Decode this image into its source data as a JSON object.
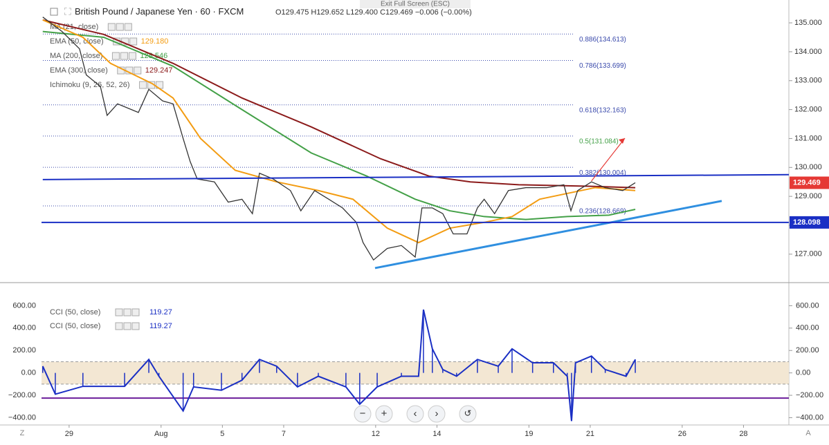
{
  "toolbar": {
    "exit_fullscreen": "Exit Full Screen (ESC)"
  },
  "header": {
    "symbol": "British Pound / Japanese Yen",
    "interval": "60",
    "source": "FXCM",
    "ohlc": "O129.475  H129.652  L129.400  C129.469  −0.006 (−0.00%)"
  },
  "indicators": [
    {
      "name": "MA (21, close)",
      "color": "#2196f3"
    },
    {
      "name": "EMA (50, close)",
      "value": "129.180",
      "color": "#f39c12"
    },
    {
      "name": "MA (200, close)",
      "value": "128.546",
      "color": "#43a047"
    },
    {
      "name": "EMA (300, close)",
      "value": "129.247",
      "color": "#8b1a1a"
    },
    {
      "name": "Ichimoku (9, 26, 52, 26)",
      "color": "#2196f3"
    }
  ],
  "xaxis": {
    "xlim": [
      -0.9,
      23.48
    ],
    "xticks": [
      {
        "value": 0,
        "label": "29"
      },
      {
        "value": 3,
        "label": "Aug"
      },
      {
        "value": 5,
        "label": "5"
      },
      {
        "value": 7,
        "label": "7"
      },
      {
        "value": 10,
        "label": "12"
      },
      {
        "value": 12,
        "label": "14"
      },
      {
        "value": 15,
        "label": "19"
      },
      {
        "value": 17,
        "label": "21"
      },
      {
        "value": 20,
        "label": "26"
      },
      {
        "value": 22,
        "label": "28"
      }
    ]
  },
  "price_panel": {
    "ylim": [
      126.04,
      135.79
    ],
    "yticks": [
      {
        "value": 127,
        "label": "127.000"
      },
      {
        "value": 128,
        "label": "128.000"
      },
      {
        "value": 129,
        "label": "129.000"
      },
      {
        "value": 130,
        "label": "130.000"
      },
      {
        "value": 131,
        "label": "131.000"
      },
      {
        "value": 132,
        "label": "132.000"
      },
      {
        "value": 133,
        "label": "133.000"
      },
      {
        "value": 134,
        "label": "134.000"
      },
      {
        "value": 135,
        "label": "135.000"
      }
    ],
    "price": {
      "color": "#333333",
      "x": [
        -0.86,
        -0.23,
        0.34,
        0.56,
        1.02,
        1.24,
        1.58,
        2.26,
        2.6,
        3.05,
        3.39,
        3.72,
        3.95,
        4.18,
        4.74,
        5.19,
        5.64,
        5.98,
        6.21,
        6.66,
        7.22,
        7.56,
        8.01,
        8.47,
        8.92,
        9.37,
        9.59,
        9.93,
        10.38,
        10.84,
        11.29,
        11.51,
        11.85,
        12.19,
        12.53,
        12.98,
        13.32,
        13.54,
        13.88,
        14.33,
        14.9,
        15.58,
        16.14,
        16.37,
        16.59,
        17.04,
        17.49,
        18.06,
        18.47
      ],
      "y": [
        135.2,
        134.7,
        134.1,
        133.2,
        132.8,
        131.8,
        132.2,
        131.9,
        132.7,
        132.3,
        132.2,
        131.0,
        130.2,
        129.6,
        129.5,
        128.8,
        128.9,
        128.4,
        129.8,
        129.6,
        129.2,
        128.5,
        129.2,
        128.9,
        128.6,
        128.1,
        127.4,
        126.8,
        127.2,
        127.3,
        126.9,
        128.6,
        128.6,
        128.4,
        127.7,
        127.7,
        128.6,
        128.9,
        128.4,
        129.2,
        129.3,
        129.3,
        129.4,
        128.5,
        129.2,
        129.5,
        129.3,
        129.2,
        129.47
      ]
    },
    "ema50": {
      "color": "#f39c12",
      "x": [
        -0.86,
        0.45,
        1.35,
        2.71,
        3.39,
        4.29,
        5.42,
        6.77,
        8.13,
        9.26,
        10.38,
        11.4,
        12.42,
        13.54,
        14.45,
        15.35,
        16.25,
        17.16,
        18.47
      ],
      "y": [
        135.1,
        134.5,
        133.6,
        132.9,
        132.4,
        131.0,
        129.9,
        129.5,
        129.2,
        128.9,
        127.9,
        127.4,
        127.9,
        128.1,
        128.3,
        128.9,
        129.1,
        129.3,
        129.2
      ]
    },
    "ma200": {
      "color": "#43a047",
      "x": [
        -0.86,
        1.13,
        3.39,
        5.64,
        7.9,
        9.71,
        11.29,
        12.42,
        13.54,
        14.9,
        16.25,
        17.61,
        18.47
      ],
      "y": [
        134.7,
        134.5,
        133.5,
        132.0,
        130.5,
        129.7,
        128.9,
        128.5,
        128.3,
        128.2,
        128.3,
        128.35,
        128.55
      ]
    },
    "ema300": {
      "color": "#8b1a1a",
      "x": [
        -0.86,
        1.13,
        3.39,
        5.64,
        7.9,
        10.16,
        11.74,
        13.09,
        14.67,
        16.93,
        18.47
      ],
      "y": [
        135.1,
        134.6,
        133.6,
        132.4,
        131.4,
        130.3,
        129.7,
        129.5,
        129.4,
        129.35,
        129.3
      ]
    },
    "fib_levels": [
      {
        "label": "0.886(134.613)",
        "price": 134.613
      },
      {
        "label": "0.786(133.699)",
        "price": 133.699
      },
      {
        "label": "0.618(132.163)",
        "price": 132.163
      },
      {
        "label": "0.5(131.084)",
        "price": 131.084
      },
      {
        "label": "0.382(130.004)",
        "price": 130.004
      },
      {
        "label": "0.236(128.669)",
        "price": 128.669
      }
    ],
    "resistance": {
      "x": [
        -0.86,
        23.48
      ],
      "y": [
        129.58,
        129.75
      ]
    },
    "support": {
      "price": 128.098,
      "label": "128.098"
    },
    "trendline": {
      "x": [
        9.98,
        21.29
      ],
      "y": [
        126.52,
        128.84
      ]
    },
    "arrow": {
      "x": [
        17.04,
        18.13
      ],
      "y": [
        129.53,
        131.01
      ]
    },
    "last_price": {
      "price": 129.469,
      "label": "129.469"
    }
  },
  "cci_panel": {
    "ylim": [
      -465,
      800
    ],
    "yticks": [
      {
        "value": 600,
        "label": "600.00"
      },
      {
        "value": 400,
        "label": "400.00"
      },
      {
        "value": 200,
        "label": "200.00"
      },
      {
        "value": 0,
        "label": "0.00"
      },
      {
        "value": -200,
        "label": "−200.00"
      },
      {
        "value": -400,
        "label": "−400.00"
      }
    ],
    "band": [
      100,
      -100
    ],
    "lower_line": -225,
    "legend": [
      {
        "name": "CCI (50, close)",
        "value": "119.27"
      },
      {
        "name": "CCI (50, close)",
        "value": "119.27"
      }
    ],
    "cci": {
      "x": [
        -0.86,
        -0.45,
        0.45,
        1.81,
        2.6,
        2.93,
        3.72,
        4.06,
        4.97,
        5.64,
        6.21,
        6.77,
        7.45,
        8.13,
        9.03,
        9.48,
        10.05,
        10.84,
        11.4,
        11.56,
        11.85,
        12.19,
        12.64,
        13.32,
        14,
        14.45,
        15.12,
        15.8,
        16.25,
        16.39,
        16.52,
        17.04,
        17.49,
        18.17,
        18.47
      ],
      "y": [
        60,
        -190,
        -120,
        -120,
        120,
        -30,
        -340,
        -125,
        -155,
        -65,
        120,
        60,
        -125,
        -30,
        -125,
        -280,
        -125,
        -30,
        -30,
        565,
        215,
        30,
        -30,
        120,
        60,
        215,
        90,
        90,
        -30,
        -430,
        90,
        150,
        30,
        -30,
        120
      ]
    }
  },
  "corners": {
    "left": "Z",
    "right": "A"
  }
}
